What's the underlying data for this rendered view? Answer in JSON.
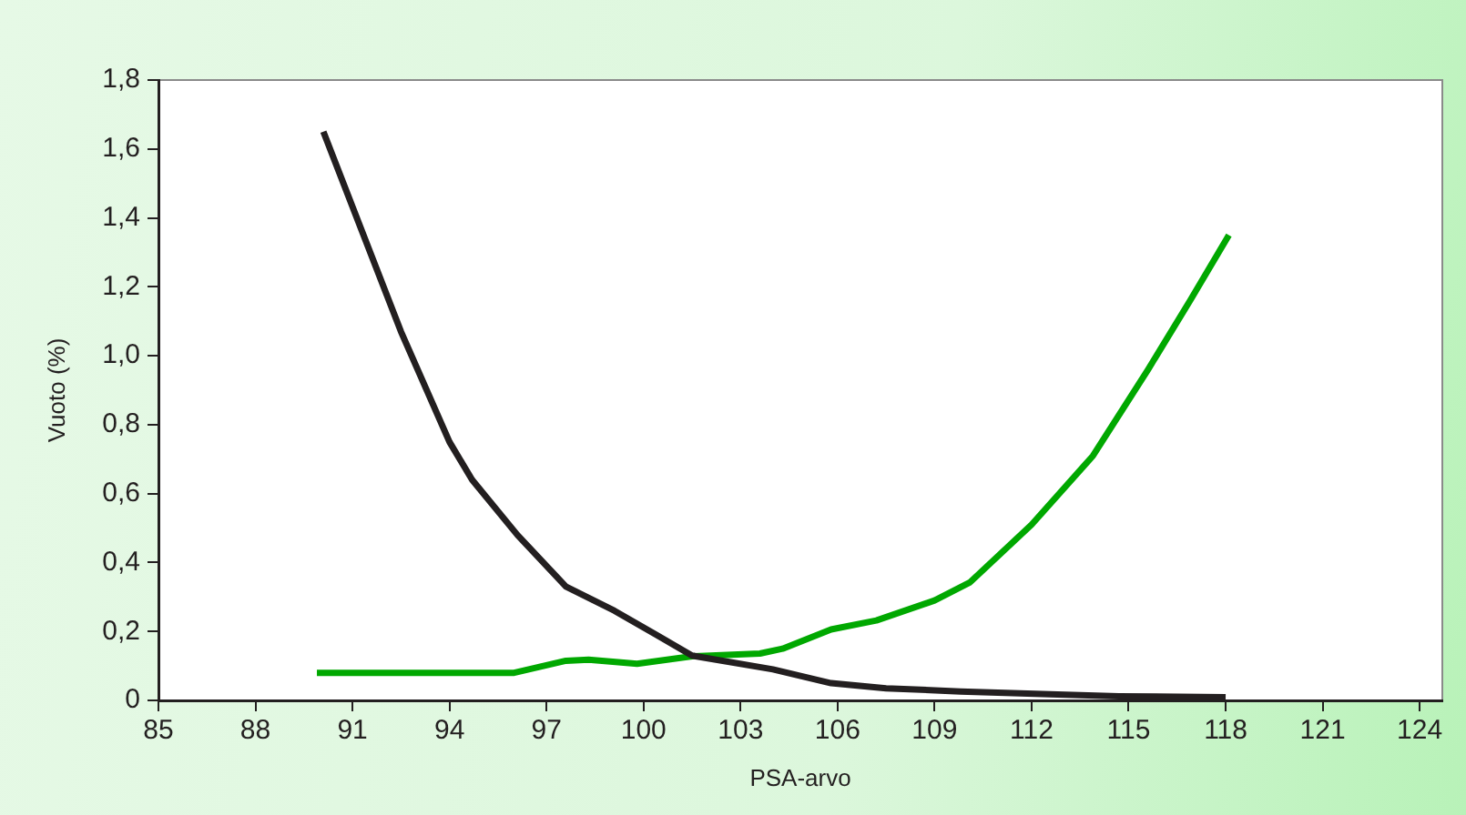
{
  "chart_data": {
    "type": "line",
    "xlabel": "PSA-arvo",
    "ylabel": "Vuoto (%)",
    "xlim": [
      85,
      124.7
    ],
    "xticks": [
      85,
      88,
      91,
      94,
      97,
      100,
      103,
      106,
      109,
      112,
      115,
      118,
      121,
      124
    ],
    "ylim": [
      0,
      1.8
    ],
    "yticks": [
      0,
      {
        "value": 0.2,
        "label": "0,2"
      },
      {
        "value": 0.4,
        "label": "0,4"
      },
      {
        "value": 0.6,
        "label": "0,6"
      },
      {
        "value": 0.8,
        "label": "0,8"
      },
      {
        "value": 1.0,
        "label": "1,0"
      },
      {
        "value": 1.2,
        "label": "1,2"
      },
      {
        "value": 1.4,
        "label": "1,4"
      },
      {
        "value": 1.6,
        "label": "1,6"
      },
      {
        "value": 1.8,
        "label": "1,8"
      }
    ],
    "grid": false,
    "legend": false,
    "marker": "none",
    "line_style": "solid",
    "series": [
      {
        "color": "#231f20",
        "x": [
          90.1,
          92.5,
          94.0,
          94.7,
          96.1,
          97.6,
          99.1,
          100.4,
          101.5,
          104.0,
          105.8,
          107.5,
          109.8,
          112.8,
          114.7,
          118.0
        ],
        "values": [
          1.65,
          1.07,
          0.75,
          0.64,
          0.48,
          0.33,
          0.26,
          0.19,
          0.13,
          0.09,
          0.05,
          0.035,
          0.026,
          0.017,
          0.012,
          0.009
        ]
      },
      {
        "color": "#00a800",
        "x": [
          89.9,
          93.6,
          96.0,
          97.6,
          98.3,
          99.8,
          101.5,
          103.6,
          104.3,
          105.8,
          107.2,
          109.0,
          110.1,
          112.0,
          113.9,
          115.6,
          116.9,
          118.1
        ],
        "values": [
          0.08,
          0.08,
          0.08,
          0.115,
          0.118,
          0.106,
          0.128,
          0.136,
          0.15,
          0.206,
          0.232,
          0.29,
          0.343,
          0.51,
          0.71,
          0.96,
          1.16,
          1.35
        ]
      }
    ]
  }
}
